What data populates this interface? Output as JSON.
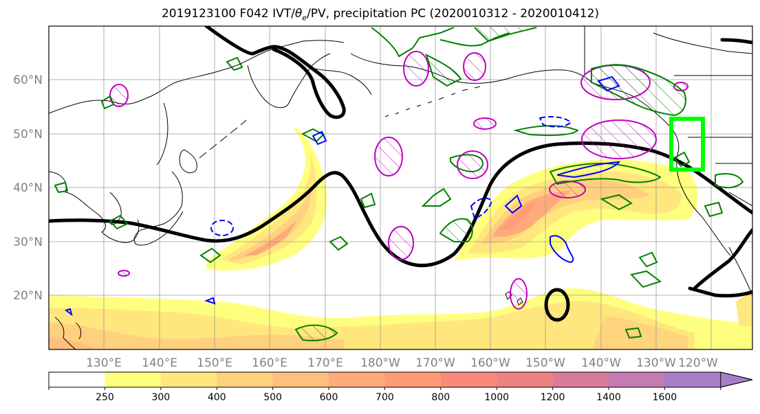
{
  "title": {
    "prefix": "2019123100 F042 IVT/",
    "theta": "θ",
    "theta_sub": "e",
    "suffix": "/PV, precipitation PC (2020010312 - 2020010412)"
  },
  "map": {
    "lat_labels": [
      "60°N",
      "50°N",
      "40°N",
      "30°N",
      "20°N"
    ],
    "lon_labels": [
      "130°E",
      "140°E",
      "150°E",
      "160°E",
      "170°E",
      "180°W",
      "170°W",
      "160°W",
      "150°W",
      "140°W",
      "130°W",
      "120°W"
    ],
    "highlight_box_color": "#00ff00",
    "pv_contour_color": "#000000",
    "positive_pc_color": "#008000",
    "negative_pc_color": "#0000ff",
    "theta_contour_color": "#c000c0"
  },
  "colorbar": {
    "levels": [
      "250",
      "300",
      "400",
      "500",
      "600",
      "700",
      "800",
      "1000",
      "1200",
      "1400",
      "1600"
    ],
    "colors": [
      "#ffffff",
      "#ffff7f",
      "#ffe77e",
      "#ffd07d",
      "#ffbf7e",
      "#ffaa7a",
      "#ff9c77",
      "#f98a7a",
      "#ed8282",
      "#d97c99",
      "#c27cb2",
      "#a87ec8"
    ]
  }
}
